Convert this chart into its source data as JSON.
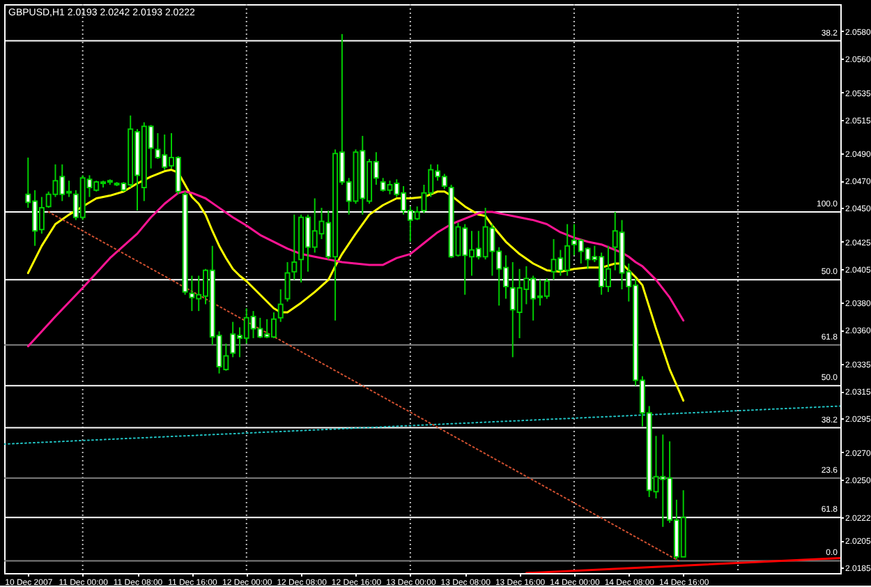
{
  "chart_data": {
    "type": "candlestick",
    "title": "GBPUSD,H1 2.0193 2.0242 2.0193 2.0222",
    "x": [
      "2007-12-10T16:00",
      "2007-12-10T17:00",
      "2007-12-10T18:00",
      "2007-12-10T19:00",
      "2007-12-10T20:00",
      "2007-12-10T21:00",
      "2007-12-10T22:00",
      "2007-12-10T23:00",
      "2007-12-11T00:00",
      "2007-12-11T01:00",
      "2007-12-11T02:00",
      "2007-12-11T03:00",
      "2007-12-11T04:00",
      "2007-12-11T05:00",
      "2007-12-11T06:00",
      "2007-12-11T07:00",
      "2007-12-11T08:00",
      "2007-12-11T09:00",
      "2007-12-11T10:00",
      "2007-12-11T11:00",
      "2007-12-11T12:00",
      "2007-12-11T13:00",
      "2007-12-11T14:00",
      "2007-12-11T15:00",
      "2007-12-11T16:00",
      "2007-12-11T17:00",
      "2007-12-11T18:00",
      "2007-12-11T19:00",
      "2007-12-11T20:00",
      "2007-12-11T21:00",
      "2007-12-11T22:00",
      "2007-12-11T23:00",
      "2007-12-12T00:00",
      "2007-12-12T01:00",
      "2007-12-12T02:00",
      "2007-12-12T03:00",
      "2007-12-12T04:00",
      "2007-12-12T05:00",
      "2007-12-12T06:00",
      "2007-12-12T07:00",
      "2007-12-12T08:00",
      "2007-12-12T09:00",
      "2007-12-12T10:00",
      "2007-12-12T11:00",
      "2007-12-12T12:00",
      "2007-12-12T13:00",
      "2007-12-12T14:00",
      "2007-12-12T15:00",
      "2007-12-12T16:00",
      "2007-12-12T17:00",
      "2007-12-12T18:00",
      "2007-12-12T19:00",
      "2007-12-12T20:00",
      "2007-12-12T21:00",
      "2007-12-12T22:00",
      "2007-12-12T23:00",
      "2007-12-13T00:00",
      "2007-12-13T01:00",
      "2007-12-13T02:00",
      "2007-12-13T03:00",
      "2007-12-13T04:00",
      "2007-12-13T05:00",
      "2007-12-13T06:00",
      "2007-12-13T07:00",
      "2007-12-13T08:00",
      "2007-12-13T09:00",
      "2007-12-13T10:00",
      "2007-12-13T11:00",
      "2007-12-13T12:00",
      "2007-12-13T13:00",
      "2007-12-13T14:00",
      "2007-12-13T15:00",
      "2007-12-13T16:00",
      "2007-12-13T17:00",
      "2007-12-13T18:00",
      "2007-12-13T19:00",
      "2007-12-13T20:00",
      "2007-12-13T21:00",
      "2007-12-13T22:00",
      "2007-12-13T23:00",
      "2007-12-14T00:00",
      "2007-12-14T01:00",
      "2007-12-14T02:00",
      "2007-12-14T03:00",
      "2007-12-14T04:00",
      "2007-12-14T05:00",
      "2007-12-14T06:00",
      "2007-12-14T07:00",
      "2007-12-14T08:00",
      "2007-12-14T09:00",
      "2007-12-14T10:00",
      "2007-12-14T11:00",
      "2007-12-14T12:00",
      "2007-12-14T13:00",
      "2007-12-14T14:00",
      "2007-12-14T15:00",
      "2007-12-14T16:00"
    ],
    "ohlc": [
      [
        2.046,
        2.0487,
        2.045,
        2.0454
      ],
      [
        2.0455,
        2.0463,
        2.0422,
        2.0433
      ],
      [
        2.0434,
        2.0458,
        2.0431,
        2.045
      ],
      [
        2.0451,
        2.0462,
        2.045,
        2.046
      ],
      [
        2.046,
        2.0482,
        2.0458,
        2.047
      ],
      [
        2.0473,
        2.0482,
        2.0455,
        2.046
      ],
      [
        2.0462,
        2.047,
        2.0458,
        2.0461
      ],
      [
        2.046,
        2.0463,
        2.0441,
        2.0443
      ],
      [
        2.0443,
        2.0474,
        2.0441,
        2.0472
      ],
      [
        2.0471,
        2.0474,
        2.0458,
        2.0465
      ],
      [
        2.0463,
        2.047,
        2.0462,
        2.0469
      ],
      [
        2.0469,
        2.047,
        2.0465,
        2.0468
      ],
      [
        2.0469,
        2.0471,
        2.0467,
        2.047
      ],
      [
        2.0468,
        2.0469,
        2.0466,
        2.0467
      ],
      [
        2.0468,
        2.0469,
        2.0462,
        2.0463
      ],
      [
        2.0467,
        2.0518,
        2.0465,
        2.0508
      ],
      [
        2.0506,
        2.0508,
        2.0448,
        2.0474
      ],
      [
        2.0465,
        2.0513,
        2.0455,
        2.051
      ],
      [
        2.051,
        2.0511,
        2.0479,
        2.0494
      ],
      [
        2.0493,
        2.0505,
        2.0486,
        2.0487
      ],
      [
        2.0489,
        2.0504,
        2.0478,
        2.048
      ],
      [
        2.0481,
        2.0505,
        2.0479,
        2.0487
      ],
      [
        2.0487,
        2.0488,
        2.046,
        2.0462
      ],
      [
        2.046,
        2.0462,
        2.0386,
        2.0388
      ],
      [
        2.0387,
        2.04,
        2.0374,
        2.0384
      ],
      [
        2.0383,
        2.04,
        2.0374,
        2.0386
      ],
      [
        2.0385,
        2.0405,
        2.0379,
        2.0404
      ],
      [
        2.0404,
        2.0422,
        2.0349,
        2.0355
      ],
      [
        2.0356,
        2.0359,
        2.0328,
        2.0333
      ],
      [
        2.0331,
        2.035,
        2.033,
        2.0341
      ],
      [
        2.0357,
        2.0366,
        2.034,
        2.0343
      ],
      [
        2.0356,
        2.0362,
        2.034,
        2.0354
      ],
      [
        2.0354,
        2.0376,
        2.035,
        2.0369
      ],
      [
        2.037,
        2.0374,
        2.0354,
        2.0361
      ],
      [
        2.0361,
        2.0369,
        2.0354,
        2.0355
      ],
      [
        2.0357,
        2.0368,
        2.0354,
        2.0355
      ],
      [
        2.0355,
        2.0373,
        2.0354,
        2.0368
      ],
      [
        2.0369,
        2.039,
        2.0366,
        2.0379
      ],
      [
        2.0383,
        2.041,
        2.0381,
        2.0402
      ],
      [
        2.0403,
        2.0445,
        2.0397,
        2.041
      ],
      [
        2.0412,
        2.0445,
        2.0395,
        2.0443
      ],
      [
        2.0443,
        2.0445,
        2.0403,
        2.0421
      ],
      [
        2.0421,
        2.0457,
        2.0417,
        2.0433
      ],
      [
        2.0431,
        2.045,
        2.0427,
        2.044
      ],
      [
        2.0439,
        2.0448,
        2.0412,
        2.0414
      ],
      [
        2.0414,
        2.0493,
        2.0367,
        2.049
      ],
      [
        2.0491,
        2.0578,
        2.0467,
        2.0469
      ],
      [
        2.0469,
        2.0472,
        2.0445,
        2.0455
      ],
      [
        2.0455,
        2.0493,
        2.0453,
        2.0491
      ],
      [
        2.0492,
        2.0503,
        2.0445,
        2.0457
      ],
      [
        2.0455,
        2.0486,
        2.0453,
        2.0484
      ],
      [
        2.0484,
        2.0491,
        2.0467,
        2.0472
      ],
      [
        2.0469,
        2.0472,
        2.0462,
        2.0463
      ],
      [
        2.0463,
        2.047,
        2.046,
        2.0467
      ],
      [
        2.0468,
        2.0471,
        2.0458,
        2.046
      ],
      [
        2.0461,
        2.0466,
        2.0445,
        2.0448
      ],
      [
        2.0448,
        2.0451,
        2.0425,
        2.0441
      ],
      [
        2.0442,
        2.0451,
        2.0441,
        2.0447
      ],
      [
        2.0448,
        2.0467,
        2.0446,
        2.0461
      ],
      [
        2.0461,
        2.0482,
        2.0458,
        2.0478
      ],
      [
        2.0477,
        2.0482,
        2.047,
        2.0473
      ],
      [
        2.0473,
        2.0475,
        2.0464,
        2.0466
      ],
      [
        2.0465,
        2.0467,
        2.0413,
        2.0414
      ],
      [
        2.0415,
        2.0439,
        2.0414,
        2.0436
      ],
      [
        2.0435,
        2.0438,
        2.0386,
        2.0415
      ],
      [
        2.0414,
        2.0433,
        2.04,
        2.0419
      ],
      [
        2.042,
        2.0433,
        2.0412,
        2.0414
      ],
      [
        2.0414,
        2.045,
        2.0412,
        2.0436
      ],
      [
        2.0435,
        2.0438,
        2.04,
        2.0418
      ],
      [
        2.0418,
        2.0421,
        2.0378,
        2.0405
      ],
      [
        2.0406,
        2.0415,
        2.0383,
        2.0392
      ],
      [
        2.0391,
        2.041,
        2.034,
        2.0375
      ],
      [
        2.0373,
        2.0405,
        2.0354,
        2.0391
      ],
      [
        2.039,
        2.0407,
        2.0379,
        2.0398
      ],
      [
        2.0398,
        2.04,
        2.0367,
        2.0383
      ],
      [
        2.0385,
        2.0397,
        2.0378,
        2.0384
      ],
      [
        2.0385,
        2.0398,
        2.0383,
        2.0396
      ],
      [
        2.0403,
        2.0427,
        2.0397,
        2.0412
      ],
      [
        2.0413,
        2.0419,
        2.04,
        2.0404
      ],
      [
        2.0404,
        2.0438,
        2.04,
        2.0422
      ],
      [
        2.0426,
        2.0438,
        2.0415,
        2.0423
      ],
      [
        2.0426,
        2.0427,
        2.0409,
        2.0418
      ],
      [
        2.042,
        2.0421,
        2.0405,
        2.0412
      ],
      [
        2.0414,
        2.0422,
        2.041,
        2.0412
      ],
      [
        2.0414,
        2.0417,
        2.0386,
        2.0392
      ],
      [
        2.0392,
        2.0422,
        2.0388,
        2.0405
      ],
      [
        2.0421,
        2.0447,
        2.0404,
        2.0433
      ],
      [
        2.0432,
        2.0441,
        2.039,
        2.0402
      ],
      [
        2.0403,
        2.0409,
        2.0381,
        2.0392
      ],
      [
        2.0393,
        2.0398,
        2.0319,
        2.0323
      ],
      [
        2.0323,
        2.0326,
        2.0289,
        2.0299
      ],
      [
        2.0299,
        2.0304,
        2.0237,
        2.0242
      ],
      [
        2.0241,
        2.0282,
        2.0236,
        2.0252
      ],
      [
        2.0252,
        2.0283,
        2.0215,
        2.025
      ],
      [
        2.0251,
        2.0278,
        2.0218,
        2.022
      ],
      [
        2.022,
        2.0235,
        2.0191,
        2.0193
      ],
      [
        2.0193,
        2.0242,
        2.0193,
        2.0222
      ]
    ],
    "color": "#00cc00",
    "colors": [
      "#ffffff",
      "#ffffff",
      "#000000",
      "#000000",
      "#000000",
      "#ffffff",
      "#ffffff",
      "#ffffff",
      "#000000",
      "#ffffff",
      "#000000",
      "#ffffff",
      "#000000",
      "#ffffff",
      "#ffffff",
      "#000000",
      "#ffffff",
      "#000000",
      "#ffffff",
      "#ffffff",
      "#ffffff",
      "#000000",
      "#ffffff",
      "#ffffff",
      "#ffffff",
      "#000000",
      "#000000",
      "#ffffff",
      "#ffffff",
      "#000000",
      "#ffffff",
      "#ffffff",
      "#000000",
      "#ffffff",
      "#ffffff",
      "#ffffff",
      "#000000",
      "#000000",
      "#000000",
      "#000000",
      "#000000",
      "#ffffff",
      "#000000",
      "#000000",
      "#ffffff",
      "#000000",
      "#ffffff",
      "#ffffff",
      "#000000",
      "#ffffff",
      "#000000",
      "#ffffff",
      "#ffffff",
      "#000000",
      "#ffffff",
      "#ffffff",
      "#ffffff",
      "#000000",
      "#000000",
      "#000000",
      "#ffffff",
      "#ffffff",
      "#ffffff",
      "#000000",
      "#ffffff",
      "#000000",
      "#ffffff",
      "#000000",
      "#ffffff",
      "#ffffff",
      "#ffffff",
      "#ffffff",
      "#000000",
      "#000000",
      "#ffffff",
      "#ffffff",
      "#000000",
      "#000000",
      "#ffffff",
      "#000000",
      "#ffffff",
      "#ffffff",
      "#ffffff",
      "#ffffff",
      "#ffffff",
      "#000000",
      "#000000",
      "#ffffff",
      "#ffffff",
      "#ffffff",
      "#ffffff",
      "#ffffff",
      "#000000",
      "#ffffff",
      "#ffffff",
      "#ffffff",
      "#000000"
    ],
    "series": [
      {
        "type": "line",
        "color": "#ffff00",
        "x": [
          "2007-12-10T16:00",
          "2007-12-10T18:00",
          "2007-12-10T20:00",
          "2007-12-10T22:00",
          "2007-12-11T00:00",
          "2007-12-11T02:00",
          "2007-12-11T04:00",
          "2007-12-11T06:00",
          "2007-12-11T08:00",
          "2007-12-11T10:00",
          "2007-12-11T12:00",
          "2007-12-11T13:00",
          "2007-12-11T14:00",
          "2007-12-11T15:00",
          "2007-12-11T16:00",
          "2007-12-11T17:00",
          "2007-12-11T18:00",
          "2007-12-11T19:00",
          "2007-12-11T20:00",
          "2007-12-11T21:00",
          "2007-12-11T22:00",
          "2007-12-11T23:00",
          "2007-12-12T00:00",
          "2007-12-12T02:00",
          "2007-12-12T04:00",
          "2007-12-12T05:00",
          "2007-12-12T06:00",
          "2007-12-12T08:00",
          "2007-12-12T10:00",
          "2007-12-12T12:00",
          "2007-12-12T13:00",
          "2007-12-12T14:00",
          "2007-12-12T16:00",
          "2007-12-12T18:00",
          "2007-12-12T20:00",
          "2007-12-12T22:00",
          "2007-12-13T00:00",
          "2007-12-13T02:00",
          "2007-12-13T04:00",
          "2007-12-13T05:00",
          "2007-12-13T06:00",
          "2007-12-13T08:00",
          "2007-12-13T10:00",
          "2007-12-13T11:00",
          "2007-12-13T12:00",
          "2007-12-13T14:00",
          "2007-12-13T16:00",
          "2007-12-13T18:00",
          "2007-12-13T20:00",
          "2007-12-13T22:00",
          "2007-12-14T00:00",
          "2007-12-14T02:00",
          "2007-12-14T04:00",
          "2007-12-14T06:00",
          "2007-12-14T07:00",
          "2007-12-14T08:00",
          "2007-12-14T09:00",
          "2007-12-14T10:00",
          "2007-12-14T12:00",
          "2007-12-14T14:00",
          "2007-12-14T16:00"
        ],
        "values": [
          2.0402,
          2.0422,
          2.0438,
          2.0445,
          2.0451,
          2.0457,
          2.0459,
          2.0462,
          2.0468,
          2.0473,
          2.0477,
          2.0478,
          2.0476,
          2.0467,
          2.0458,
          2.0453,
          2.0445,
          2.0433,
          2.0422,
          2.0413,
          2.0405,
          2.04,
          2.0396,
          2.0386,
          2.0376,
          2.0373,
          2.0373,
          2.038,
          2.0388,
          2.0397,
          2.0407,
          2.0416,
          2.0431,
          2.0445,
          2.0452,
          2.0457,
          2.0457,
          2.0458,
          2.0462,
          2.0462,
          2.0459,
          2.0451,
          2.0445,
          2.0444,
          2.0437,
          2.0425,
          2.0416,
          2.0409,
          2.0404,
          2.0403,
          2.0405,
          2.0406,
          2.0406,
          2.0409,
          2.0409,
          2.0404,
          2.0399,
          2.0393,
          2.0361,
          2.0331,
          2.0308
        ]
      },
      {
        "type": "line",
        "color": "#ff1493",
        "x": [
          "2007-12-10T16:00",
          "2007-12-10T20:00",
          "2007-12-11T00:00",
          "2007-12-11T04:00",
          "2007-12-11T08:00",
          "2007-12-11T10:00",
          "2007-12-11T12:00",
          "2007-12-11T14:00",
          "2007-12-11T15:00",
          "2007-12-11T16:00",
          "2007-12-11T18:00",
          "2007-12-11T20:00",
          "2007-12-11T22:00",
          "2007-12-12T00:00",
          "2007-12-12T02:00",
          "2007-12-12T04:00",
          "2007-12-12T06:00",
          "2007-12-12T08:00",
          "2007-12-12T10:00",
          "2007-12-12T12:00",
          "2007-12-12T14:00",
          "2007-12-12T16:00",
          "2007-12-12T18:00",
          "2007-12-12T20:00",
          "2007-12-12T22:00",
          "2007-12-13T00:00",
          "2007-12-13T02:00",
          "2007-12-13T04:00",
          "2007-12-13T06:00",
          "2007-12-13T08:00",
          "2007-12-13T10:00",
          "2007-12-13T11:00",
          "2007-12-13T12:00",
          "2007-12-13T14:00",
          "2007-12-13T16:00",
          "2007-12-13T18:00",
          "2007-12-13T20:00",
          "2007-12-13T22:00",
          "2007-12-14T00:00",
          "2007-12-14T02:00",
          "2007-12-14T04:00",
          "2007-12-14T06:00",
          "2007-12-14T07:00",
          "2007-12-14T08:00",
          "2007-12-14T09:00",
          "2007-12-14T10:00",
          "2007-12-14T12:00",
          "2007-12-14T14:00",
          "2007-12-14T16:00"
        ],
        "values": [
          2.0348,
          2.037,
          2.0391,
          2.0413,
          2.0431,
          2.0443,
          2.0453,
          2.0461,
          2.0462,
          2.0461,
          2.0457,
          2.045,
          2.0443,
          2.0437,
          2.043,
          2.0425,
          2.042,
          2.0416,
          2.0414,
          2.0412,
          2.041,
          2.0409,
          2.0408,
          2.0408,
          2.0413,
          2.0416,
          2.0424,
          2.0432,
          2.0438,
          2.0442,
          2.0446,
          2.0447,
          2.0447,
          2.0445,
          2.0443,
          2.0441,
          2.0438,
          2.0432,
          2.0428,
          2.0425,
          2.0423,
          2.0419,
          2.0417,
          2.0414,
          2.041,
          2.0407,
          2.0397,
          2.0384,
          2.0367
        ]
      },
      {
        "type": "line",
        "color": "#20c0c0",
        "line_style": "dotted",
        "x": [
          "2007-12-10T12:30",
          "2007-12-15T15:00"
        ],
        "values": [
          2.0276,
          2.0304
        ]
      },
      {
        "type": "line",
        "color": "#d05030",
        "line_style": "dotted",
        "x": [
          "2007-12-10T19:00",
          "2007-12-14T15:20"
        ],
        "values": [
          2.0447,
          2.019
        ]
      },
      {
        "type": "line",
        "color": "#ff0000",
        "x": [
          "2007-12-13T17:00",
          "2007-12-15T15:00"
        ],
        "values": [
          2.0181,
          2.0192
        ]
      }
    ],
    "xlim": [
      "2007-12-10T12:30",
      "2007-12-15T15:00"
    ],
    "xticks": [
      {
        "value": "2007-12-10T16:00",
        "label": "10 Dec 2007"
      },
      {
        "value": "2007-12-11T00:00",
        "label": "11 Dec 00:00"
      },
      {
        "value": "2007-12-11T08:00",
        "label": "11 Dec 08:00"
      },
      {
        "value": "2007-12-11T16:00",
        "label": "11 Dec 16:00"
      },
      {
        "value": "2007-12-12T00:00",
        "label": "12 Dec 00:00"
      },
      {
        "value": "2007-12-12T08:00",
        "label": "12 Dec 08:00"
      },
      {
        "value": "2007-12-12T16:00",
        "label": "12 Dec 16:00"
      },
      {
        "value": "2007-12-13T00:00",
        "label": "13 Dec 00:00"
      },
      {
        "value": "2007-12-13T08:00",
        "label": "13 Dec 08:00"
      },
      {
        "value": "2007-12-13T16:00",
        "label": "13 Dec 16:00"
      },
      {
        "value": "2007-12-14T00:00",
        "label": "14 Dec 00:00"
      },
      {
        "value": "2007-12-14T08:00",
        "label": "14 Dec 08:00"
      },
      {
        "value": "2007-12-14T16:00",
        "label": "14 Dec 16:00"
      }
    ],
    "ylim": [
      2.0181,
      2.06
    ],
    "yticks": [
      2.0185,
      2.0205,
      2.0222,
      {
        "value": 2.025,
        "label": "2.0250"
      },
      {
        "value": 2.027,
        "label": "2.0270"
      },
      2.0295,
      2.0315,
      2.0335,
      {
        "value": 2.036,
        "label": "2.0360"
      },
      {
        "value": 2.038,
        "label": "2.0380"
      },
      2.0405,
      2.0425,
      {
        "value": 2.045,
        "label": "2.0450"
      },
      {
        "value": 2.047,
        "label": "2.0470"
      },
      {
        "value": 2.049,
        "label": "2.0490"
      },
      2.0515,
      2.0535,
      {
        "value": 2.056,
        "label": "2.0560"
      },
      {
        "value": 2.058,
        "label": "2.0580"
      }
    ],
    "ref_lines": [
      {
        "axis": "x",
        "value": "2007-12-11T00:00",
        "line_style": "dotted",
        "color": "#c0c0c0"
      },
      {
        "axis": "x",
        "value": "2007-12-12T00:00",
        "line_style": "dotted",
        "color": "#c0c0c0"
      },
      {
        "axis": "x",
        "value": "2007-12-13T00:00",
        "line_style": "dotted",
        "color": "#c0c0c0"
      },
      {
        "axis": "x",
        "value": "2007-12-14T00:00",
        "line_style": "dotted",
        "color": "#c0c0c0"
      },
      {
        "axis": "x",
        "value": "2007-12-15T00:00",
        "line_style": "dotted",
        "color": "#c0c0c0"
      },
      {
        "axis": "y",
        "value": 2.0573,
        "color": "#ffffff"
      },
      {
        "axis": "y",
        "value": 2.0447,
        "color": "#ffffff"
      },
      {
        "axis": "y",
        "value": 2.0397,
        "color": "#ffffff"
      },
      {
        "axis": "y",
        "value": 2.0349,
        "color": "#808080"
      },
      {
        "axis": "y",
        "value": 2.0319,
        "color": "#ffffff"
      },
      {
        "axis": "y",
        "value": 2.0288,
        "color": "#ffffff"
      },
      {
        "axis": "y",
        "value": 2.0251,
        "color": "#808080"
      },
      {
        "axis": "y",
        "value": 2.0222,
        "color": "#ffffff"
      },
      {
        "axis": "y",
        "value": 2.019,
        "color": "#808080"
      }
    ],
    "annotations": [
      {
        "text": "38.2",
        "x": "2007-12-15T15:00",
        "y": 2.0573
      },
      {
        "text": "100.0",
        "x": "2007-12-15T15:00",
        "y": 2.0447
      },
      {
        "text": "50.0",
        "x": "2007-12-15T15:00",
        "y": 2.0397
      },
      {
        "text": "61.8",
        "x": "2007-12-15T15:00",
        "y": 2.0349
      },
      {
        "text": "50.0",
        "x": "2007-12-15T15:00",
        "y": 2.0319
      },
      {
        "text": "38.2",
        "x": "2007-12-15T15:00",
        "y": 2.0288
      },
      {
        "text": "23.6",
        "x": "2007-12-15T15:00",
        "y": 2.0251
      },
      {
        "text": "61.8",
        "x": "2007-12-15T15:00",
        "y": 2.0222
      },
      {
        "text": "0.0",
        "x": "2007-12-15T15:00",
        "y": 2.019
      }
    ]
  }
}
